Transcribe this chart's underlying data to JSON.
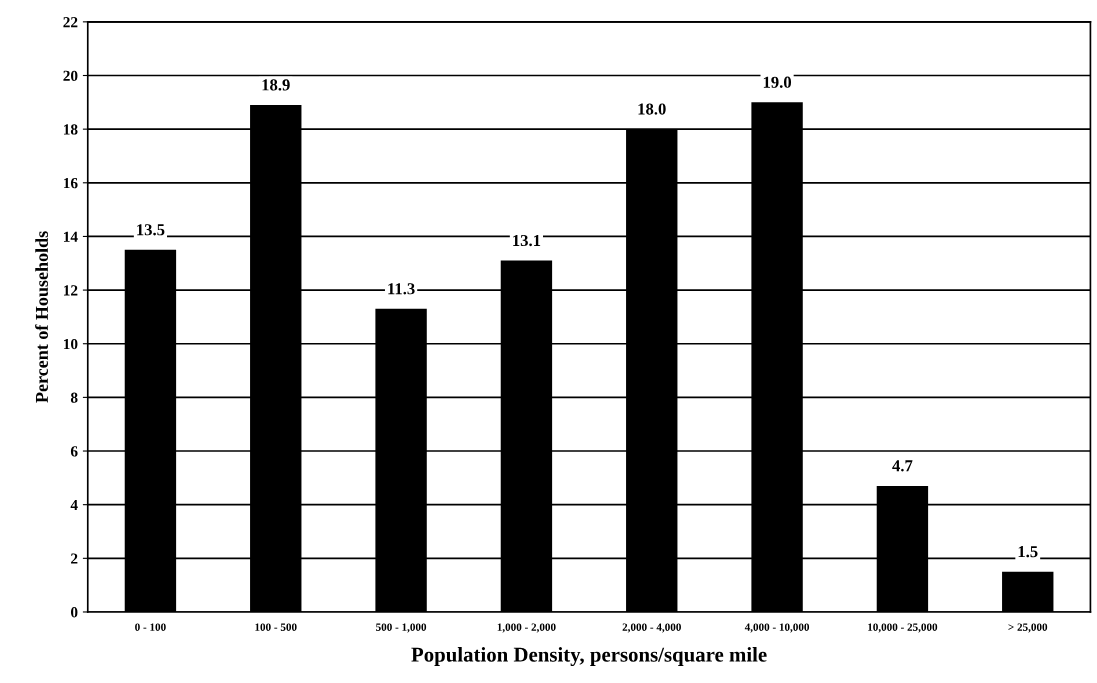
{
  "chart_data": {
    "type": "bar",
    "xlabel": "Population Density, persons/square mile",
    "ylabel": "Percent of Households",
    "categories": [
      "0 - 100",
      "100 - 500",
      "500 - 1,000",
      "1,000 - 2,000",
      "2,000 - 4,000",
      "4,000 - 10,000",
      "10,000 - 25,000",
      "> 25,000"
    ],
    "values": [
      13.5,
      18.9,
      11.3,
      13.1,
      18.0,
      19.0,
      4.7,
      1.5
    ],
    "value_labels": [
      "13.5",
      "18.9",
      "11.3",
      "13.1",
      "18.0",
      "19.0",
      "4.7",
      "1.5"
    ],
    "color": "#000000",
    "ylim": [
      0,
      22
    ],
    "yticks": [
      0,
      2,
      4,
      6,
      8,
      10,
      12,
      14,
      16,
      18,
      20,
      22
    ],
    "grid": "y",
    "legend": false
  }
}
